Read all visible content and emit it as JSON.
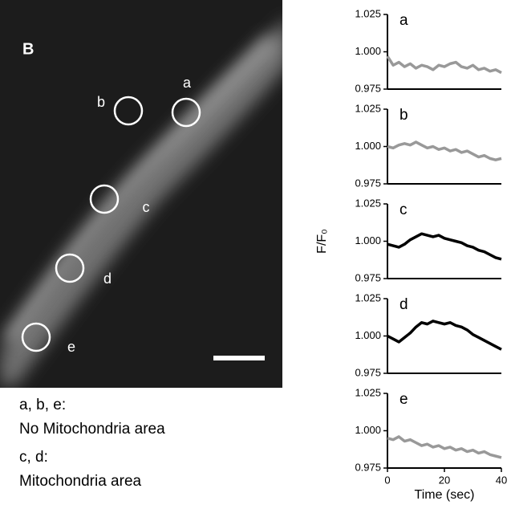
{
  "figure_label": "B",
  "image_labels": [
    "a",
    "b",
    "c",
    "d",
    "e"
  ],
  "notes": [
    "a, b, e:",
    "No Mitochondria area",
    "c, d:",
    "Mitochondria area"
  ],
  "chart_data": [
    {
      "type": "line",
      "title": "a",
      "color": "#999999",
      "xlim": [
        0,
        40
      ],
      "ylim": [
        0.975,
        1.025
      ],
      "yticks": [
        {
          "value": 0.975,
          "label": "0.975"
        },
        {
          "value": 1.0,
          "label": "1.000"
        },
        {
          "value": 1.025,
          "label": "1.025"
        }
      ],
      "x": [
        0,
        2,
        4,
        6,
        8,
        10,
        12,
        14,
        16,
        18,
        20,
        22,
        24,
        26,
        28,
        30,
        32,
        34,
        36,
        38,
        40
      ],
      "values": [
        0.997,
        0.991,
        0.993,
        0.99,
        0.992,
        0.989,
        0.991,
        0.99,
        0.988,
        0.991,
        0.99,
        0.992,
        0.993,
        0.99,
        0.989,
        0.991,
        0.988,
        0.989,
        0.987,
        0.988,
        0.986
      ]
    },
    {
      "type": "line",
      "title": "b",
      "color": "#999999",
      "xlim": [
        0,
        40
      ],
      "ylim": [
        0.975,
        1.025
      ],
      "yticks": [
        {
          "value": 0.975,
          "label": "0.975"
        },
        {
          "value": 1.0,
          "label": "1.000"
        },
        {
          "value": 1.025,
          "label": "1.025"
        }
      ],
      "x": [
        0,
        2,
        4,
        6,
        8,
        10,
        12,
        14,
        16,
        18,
        20,
        22,
        24,
        26,
        28,
        30,
        32,
        34,
        36,
        38,
        40
      ],
      "values": [
        1.0,
        0.999,
        1.001,
        1.002,
        1.001,
        1.003,
        1.001,
        0.999,
        1.0,
        0.998,
        0.999,
        0.997,
        0.998,
        0.996,
        0.997,
        0.995,
        0.993,
        0.994,
        0.992,
        0.991,
        0.992
      ]
    },
    {
      "type": "line",
      "title": "c",
      "color": "#000000",
      "ylabel": "F/F₀",
      "xlim": [
        0,
        40
      ],
      "ylim": [
        0.975,
        1.025
      ],
      "yticks": [
        {
          "value": 0.975,
          "label": "0.975"
        },
        {
          "value": 1.0,
          "label": "1.000"
        },
        {
          "value": 1.025,
          "label": "1.025"
        }
      ],
      "x": [
        0,
        2,
        4,
        6,
        8,
        10,
        12,
        14,
        16,
        18,
        20,
        22,
        24,
        26,
        28,
        30,
        32,
        34,
        36,
        38,
        40
      ],
      "values": [
        0.998,
        0.997,
        0.996,
        0.998,
        1.001,
        1.003,
        1.005,
        1.004,
        1.003,
        1.004,
        1.002,
        1.001,
        1.0,
        0.999,
        0.997,
        0.996,
        0.994,
        0.993,
        0.991,
        0.989,
        0.988
      ]
    },
    {
      "type": "line",
      "title": "d",
      "color": "#000000",
      "xlim": [
        0,
        40
      ],
      "ylim": [
        0.975,
        1.025
      ],
      "yticks": [
        {
          "value": 0.975,
          "label": "0.975"
        },
        {
          "value": 1.0,
          "label": "1.000"
        },
        {
          "value": 1.025,
          "label": "1.025"
        }
      ],
      "x": [
        0,
        2,
        4,
        6,
        8,
        10,
        12,
        14,
        16,
        18,
        20,
        22,
        24,
        26,
        28,
        30,
        32,
        34,
        36,
        38,
        40
      ],
      "values": [
        1.0,
        0.998,
        0.996,
        0.999,
        1.002,
        1.006,
        1.009,
        1.008,
        1.01,
        1.009,
        1.008,
        1.009,
        1.007,
        1.006,
        1.004,
        1.001,
        0.999,
        0.997,
        0.995,
        0.993,
        0.991
      ]
    },
    {
      "type": "line",
      "title": "e",
      "color": "#999999",
      "xlabel": "Time (sec)",
      "xlim": [
        0,
        40
      ],
      "xticks": [
        0,
        20,
        40
      ],
      "ylim": [
        0.975,
        1.025
      ],
      "yticks": [
        {
          "value": 0.975,
          "label": "0.975"
        },
        {
          "value": 1.0,
          "label": "1.000"
        },
        {
          "value": 1.025,
          "label": "1.025"
        }
      ],
      "x": [
        0,
        2,
        4,
        6,
        8,
        10,
        12,
        14,
        16,
        18,
        20,
        22,
        24,
        26,
        28,
        30,
        32,
        34,
        36,
        38,
        40
      ],
      "values": [
        0.995,
        0.994,
        0.996,
        0.993,
        0.994,
        0.992,
        0.99,
        0.991,
        0.989,
        0.99,
        0.988,
        0.989,
        0.987,
        0.988,
        0.986,
        0.987,
        0.985,
        0.986,
        0.984,
        0.983,
        0.982
      ]
    }
  ]
}
